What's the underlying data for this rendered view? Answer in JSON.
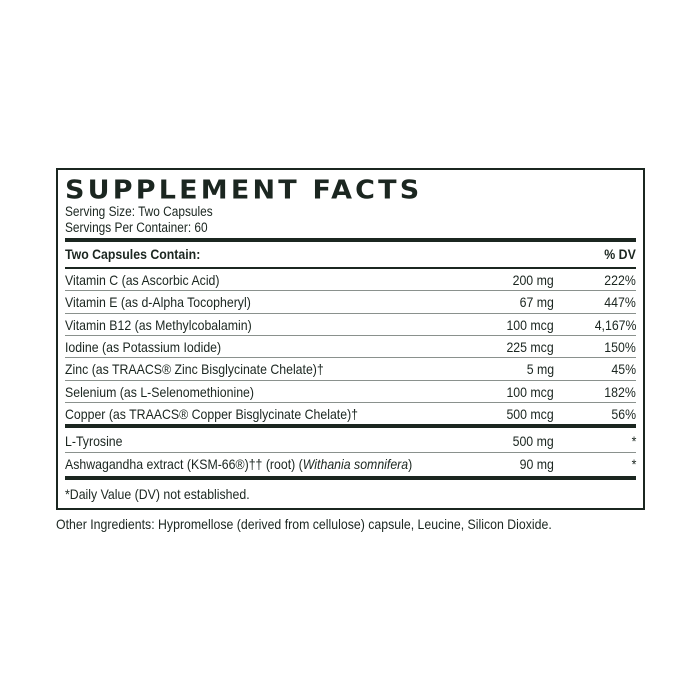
{
  "title": "SUPPLEMENT FACTS",
  "serving_size": "Serving Size: Two Capsules",
  "servings_per_container": "Servings Per Container: 60",
  "header": {
    "label": "Two Capsules Contain:",
    "dv": "% DV"
  },
  "rows": [
    {
      "name": "Vitamin C (as Ascorbic Acid)",
      "amount": "200 mg",
      "dv": "222%"
    },
    {
      "name": "Vitamin E (as d-Alpha Tocopheryl)",
      "amount": "67 mg",
      "dv": "447%"
    },
    {
      "name": "Vitamin B12 (as Methylcobalamin)",
      "amount": "100 mcg",
      "dv": "4,167%"
    },
    {
      "name": "Iodine (as Potassium Iodide)",
      "amount": "225 mcg",
      "dv": "150%"
    },
    {
      "name": "Zinc (as TRAACS® Zinc Bisglycinate Chelate)†",
      "amount": "5 mg",
      "dv": "45%"
    },
    {
      "name": "Selenium (as L-Selenomethionine)",
      "amount": "100 mcg",
      "dv": "182%"
    },
    {
      "name": "Copper (as TRAACS® Copper Bisglycinate Chelate)†",
      "amount": "500 mcg",
      "dv": "56%"
    }
  ],
  "other_rows": [
    {
      "name": "L-Tyrosine",
      "amount": "500 mg",
      "dv": "*"
    },
    {
      "name_prefix": "Ashwagandha extract (KSM-66®)†† (root) (",
      "name_italic": "Withania somnifera",
      "name_suffix": ")",
      "amount": "90 mg",
      "dv": "*"
    }
  ],
  "footnote": "*Daily Value (DV) not established.",
  "other_ingredients": "Other Ingredients: Hypromellose (derived from cellulose) capsule, Leucine, Silicon Dioxide."
}
